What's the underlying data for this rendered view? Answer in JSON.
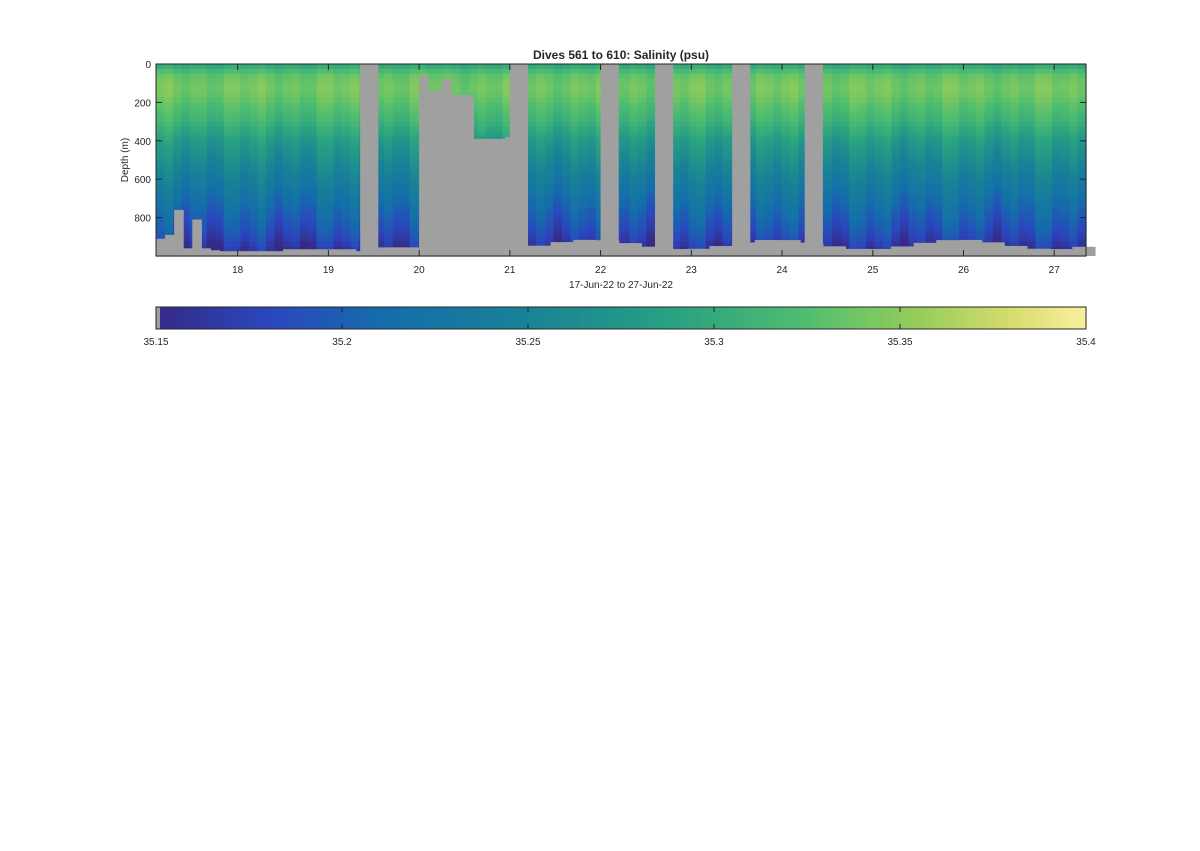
{
  "chart_data": {
    "type": "heatmap",
    "title": "Dives 561 to 610: Salinity (psu)",
    "xlabel": "17-Jun-22 to 27-Jun-22",
    "ylabel": "Depth (m)",
    "x_unit": "day of month (June 2022)",
    "xlim": [
      17.1,
      27.35
    ],
    "ylim": [
      0,
      1000
    ],
    "y_direction": "reversed",
    "xticks": [
      "18",
      "19",
      "20",
      "21",
      "22",
      "23",
      "24",
      "25",
      "26",
      "27"
    ],
    "xtick_values": [
      18,
      19,
      20,
      21,
      22,
      23,
      24,
      25,
      26,
      27
    ],
    "yticks": [
      "0",
      "200",
      "400",
      "600",
      "800"
    ],
    "ytick_values": [
      0,
      200,
      400,
      600,
      800
    ],
    "grid": false,
    "colormap": "parula-like (dark blue to yellow)",
    "missing_data_color": "#a0a0a0",
    "colorbar": {
      "orientation": "horizontal",
      "placement": "below",
      "clim": [
        35.15,
        35.4
      ],
      "ticks": [
        "35.15",
        "35.2",
        "35.25",
        "35.3",
        "35.35",
        "35.4"
      ],
      "tick_values": [
        35.15,
        35.2,
        35.25,
        35.3,
        35.35,
        35.4
      ]
    },
    "gaps": [
      [
        19.35,
        19.55
      ],
      [
        22.0,
        22.2
      ],
      [
        22.6,
        22.8
      ],
      [
        23.45,
        23.65
      ],
      [
        24.25,
        24.45
      ]
    ],
    "bottom_profile": [
      [
        17.1,
        910
      ],
      [
        17.2,
        890
      ],
      [
        17.3,
        760
      ],
      [
        17.4,
        960
      ],
      [
        17.5,
        810
      ],
      [
        17.6,
        960
      ],
      [
        17.7,
        970
      ],
      [
        17.8,
        975
      ],
      [
        18.0,
        975
      ],
      [
        18.5,
        965
      ],
      [
        19.0,
        965
      ],
      [
        19.3,
        975
      ],
      [
        19.55,
        955
      ],
      [
        20.0,
        965
      ]
    ],
    "surface_data_mask": [
      [
        20.0,
        21.0
      ]
    ],
    "surface_mask_depths": [
      [
        20.0,
        60
      ],
      [
        20.1,
        140
      ],
      [
        20.25,
        80
      ],
      [
        20.35,
        160
      ],
      [
        20.55,
        170
      ],
      [
        20.6,
        390
      ],
      [
        20.8,
        390
      ],
      [
        20.95,
        380
      ],
      [
        21.0,
        1000
      ]
    ],
    "salinity_profile_mean": [
      [
        0,
        35.29
      ],
      [
        50,
        35.33
      ],
      [
        100,
        35.34
      ],
      [
        150,
        35.34
      ],
      [
        200,
        35.33
      ],
      [
        300,
        35.31
      ],
      [
        400,
        35.28
      ],
      [
        500,
        35.26
      ],
      [
        600,
        35.24
      ],
      [
        700,
        35.22
      ],
      [
        800,
        35.2
      ],
      [
        900,
        35.18
      ],
      [
        960,
        35.16
      ]
    ]
  }
}
